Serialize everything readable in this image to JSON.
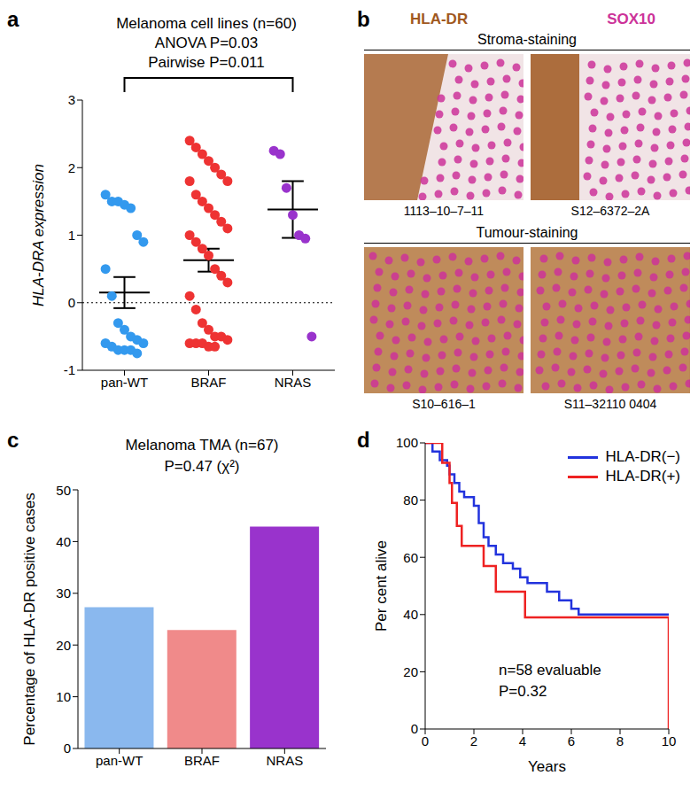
{
  "chart_data": [
    {
      "panel": "a",
      "type": "scatter",
      "title": "Melanoma cell lines (n=60)",
      "annotations": [
        "ANOVA P=0.03",
        "Pairwise P=0.011"
      ],
      "comparison": [
        "pan-WT",
        "NRAS"
      ],
      "y_label": "HLA-DRA expression",
      "categories": [
        "pan-WT",
        "BRAF",
        "NRAS"
      ],
      "groups": [
        {
          "color": "#3399ee",
          "mean": 0.15,
          "sem": 0.23,
          "values": [
            1.6,
            1.5,
            1.5,
            1.45,
            1.4,
            1.0,
            0.9,
            0.5,
            0.1,
            -0.3,
            -0.4,
            -0.5,
            -0.55,
            -0.6,
            -0.6,
            -0.65,
            -0.7,
            -0.7,
            -0.7,
            -0.75
          ]
        },
        {
          "color": "#ee3333",
          "mean": 0.63,
          "sem": 0.17,
          "values": [
            2.4,
            2.3,
            2.2,
            2.1,
            2.0,
            1.9,
            1.8,
            1.8,
            1.6,
            1.5,
            1.4,
            1.3,
            1.2,
            1.1,
            1.0,
            0.9,
            0.8,
            0.7,
            0.5,
            0.4,
            0.3,
            0.1,
            -0.1,
            -0.3,
            -0.4,
            -0.5,
            -0.5,
            -0.55,
            -0.6,
            -0.6,
            -0.6,
            -0.65,
            -0.65
          ]
        },
        {
          "color": "#9933cc",
          "mean": 1.38,
          "sem": 0.42,
          "values": [
            2.25,
            2.2,
            1.7,
            1.3,
            1.0,
            0.95,
            -0.5
          ]
        }
      ],
      "reference_line": 0,
      "ylim": [
        -1,
        3
      ],
      "yticks": [
        -1,
        0,
        1,
        2,
        3
      ]
    },
    {
      "panel": "c",
      "type": "bar",
      "title": "Melanoma TMA (n=67)",
      "annotations": [
        "P=0.47 (χ²)"
      ],
      "y_label": "Percentage of HLA-DR positive cases",
      "categories": [
        "pan-WT",
        "BRAF",
        "NRAS"
      ],
      "values": [
        27.3,
        22.9,
        42.9
      ],
      "colors": [
        "#8ab8ee",
        "#f08a8a",
        "#9933cc"
      ],
      "ylim": [
        0,
        50
      ],
      "yticks": [
        0,
        10,
        20,
        30,
        40,
        50
      ]
    },
    {
      "panel": "d",
      "type": "line",
      "annotations": [
        "n=58 evaluable",
        "P=0.32"
      ],
      "x_label": "Years",
      "y_label": "Per cent alive",
      "line_style": "step",
      "legend": "upper right",
      "series": [
        {
          "name": "HLA-DR(−)",
          "color": "#2233dd",
          "x": [
            0,
            0.3,
            0.6,
            0.9,
            1.0,
            1.2,
            1.4,
            1.6,
            2.0,
            2.2,
            2.4,
            2.6,
            2.9,
            3.2,
            3.6,
            3.9,
            4.2,
            5.0,
            5.5,
            6.0,
            6.3,
            10
          ],
          "values": [
            100,
            97,
            94,
            92,
            89,
            86,
            83,
            81,
            78,
            72,
            67,
            64,
            61,
            58,
            56,
            53,
            51,
            48,
            45,
            42,
            40,
            40
          ]
        },
        {
          "name": "HLA-DR(+)",
          "color": "#ee2222",
          "x": [
            0,
            0.7,
            1.0,
            1.1,
            1.3,
            1.5,
            2.4,
            2.9,
            4.1,
            10,
            10
          ],
          "values": [
            100,
            93,
            86,
            79,
            71,
            64,
            57,
            48,
            39,
            39,
            0
          ]
        }
      ],
      "xlim": [
        0,
        10
      ],
      "xticks": [
        0,
        2,
        4,
        6,
        8,
        10
      ],
      "ylim": [
        0,
        100
      ],
      "yticks": [
        0,
        20,
        40,
        60,
        80,
        100
      ]
    }
  ],
  "image_panel": {
    "panel": "b",
    "stains": [
      {
        "name": "HLA-DR",
        "color": "#a0581e"
      },
      {
        "name": "SOX10",
        "color": "#cc3399"
      }
    ],
    "groups": [
      {
        "title": "Stroma-staining",
        "images": [
          "1113–10–7–11",
          "S12–6372–2A"
        ]
      },
      {
        "title": "Tumour-staining",
        "images": [
          "S10–616–1",
          "S11–32110 0404"
        ]
      }
    ]
  }
}
